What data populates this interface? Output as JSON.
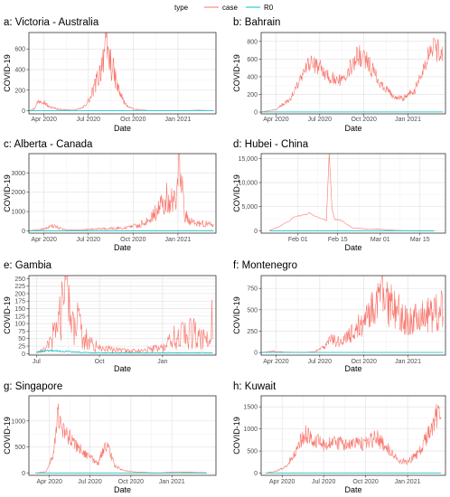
{
  "legend": {
    "title": "type",
    "entries": [
      {
        "label": "case",
        "color": "#F8766D"
      },
      {
        "label": "R0",
        "color": "#00BFC4"
      }
    ]
  },
  "chart_data": [
    {
      "type": "line",
      "title": "a: Victoria - Australia",
      "xlabel": "Date",
      "ylabel": "COVID-19",
      "xlim": [
        "2020-03-01",
        "2021-03-20"
      ],
      "ylim": [
        -30,
        760
      ],
      "yticks": [
        0,
        200,
        400,
        600
      ],
      "ytick_labels": [
        "0",
        "200",
        "400",
        "600"
      ],
      "xticks": [
        "2020-04-01",
        "2020-07-01",
        "2020-10-01",
        "2021-01-01"
      ],
      "xtick_labels": [
        "Apr 2020",
        "Jul 2020",
        "Oct 2020",
        "Jan 2021"
      ],
      "grid": true,
      "series": [
        {
          "name": "case",
          "color": "#F8766D",
          "noise": 0.35,
          "x": [
            "2020-03-01",
            "2020-03-12",
            "2020-03-20",
            "2020-03-28",
            "2020-04-10",
            "2020-05-01",
            "2020-06-01",
            "2020-06-20",
            "2020-07-05",
            "2020-07-15",
            "2020-07-25",
            "2020-08-03",
            "2020-08-10",
            "2020-08-20",
            "2020-09-01",
            "2020-09-15",
            "2020-10-01",
            "2020-11-01",
            "2021-01-01",
            "2021-02-15",
            "2021-03-15"
          ],
          "y": [
            0,
            20,
            90,
            110,
            40,
            15,
            5,
            30,
            120,
            250,
            380,
            600,
            560,
            400,
            200,
            60,
            15,
            3,
            2,
            5,
            2
          ]
        },
        {
          "name": "R0",
          "color": "#00BFC4",
          "noise": 0,
          "x": [
            "2020-03-01",
            "2021-03-15"
          ],
          "y": [
            2,
            2
          ]
        }
      ]
    },
    {
      "type": "line",
      "title": "b: Bahrain",
      "xlabel": "Date",
      "ylabel": "COVID-19",
      "xlim": [
        "2020-03-01",
        "2021-03-20"
      ],
      "ylim": [
        -20,
        900
      ],
      "yticks": [
        0,
        200,
        400,
        600,
        800
      ],
      "ytick_labels": [
        "0",
        "200",
        "400",
        "600",
        "800"
      ],
      "xticks": [
        "2020-04-01",
        "2020-07-01",
        "2020-10-01",
        "2021-01-01"
      ],
      "xtick_labels": [
        "Apr 2020",
        "Jul 2020",
        "Oct 2020",
        "Jan 2021"
      ],
      "grid": true,
      "series": [
        {
          "name": "case",
          "color": "#F8766D",
          "noise": 0.2,
          "x": [
            "2020-03-01",
            "2020-04-01",
            "2020-05-01",
            "2020-05-20",
            "2020-06-10",
            "2020-07-01",
            "2020-07-20",
            "2020-08-10",
            "2020-09-01",
            "2020-09-20",
            "2020-10-05",
            "2020-11-01",
            "2020-12-01",
            "2020-12-20",
            "2021-01-15",
            "2021-02-05",
            "2021-02-20",
            "2021-03-15"
          ],
          "y": [
            0,
            30,
            150,
            350,
            550,
            500,
            400,
            350,
            500,
            650,
            600,
            350,
            180,
            150,
            250,
            500,
            750,
            650
          ]
        },
        {
          "name": "R0",
          "color": "#00BFC4",
          "noise": 0,
          "x": [
            "2020-03-01",
            "2021-03-15"
          ],
          "y": [
            2,
            2
          ]
        }
      ]
    },
    {
      "type": "line",
      "title": "c: Alberta - Canada",
      "xlabel": "Date",
      "ylabel": "COVID-19",
      "xlim": [
        "2020-03-01",
        "2021-03-20"
      ],
      "ylim": [
        -120,
        4000
      ],
      "yticks": [
        0,
        1000,
        2000,
        3000
      ],
      "ytick_labels": [
        "0",
        "1000",
        "2000",
        "3000"
      ],
      "xticks": [
        "2020-04-01",
        "2020-07-01",
        "2020-10-01",
        "2021-01-01"
      ],
      "xtick_labels": [
        "Apr 2020",
        "Jul 2020",
        "Oct 2020",
        "Jan 2021"
      ],
      "grid": true,
      "series": [
        {
          "name": "case",
          "color": "#F8766D",
          "noise": 0.5,
          "x": [
            "2020-03-01",
            "2020-04-01",
            "2020-04-20",
            "2020-05-15",
            "2020-06-15",
            "2020-07-15",
            "2020-08-15",
            "2020-09-15",
            "2020-10-15",
            "2020-11-10",
            "2020-11-25",
            "2020-12-10",
            "2020-12-28",
            "2021-01-03",
            "2021-01-15",
            "2021-02-01",
            "2021-03-15"
          ],
          "y": [
            0,
            100,
            250,
            50,
            40,
            100,
            120,
            150,
            300,
            800,
            1200,
            1700,
            1300,
            3700,
            800,
            400,
            350
          ]
        },
        {
          "name": "R0",
          "color": "#00BFC4",
          "noise": 0,
          "x": [
            "2020-03-01",
            "2021-03-15"
          ],
          "y": [
            5,
            5
          ]
        }
      ]
    },
    {
      "type": "line",
      "title": "d: Hubei - China",
      "xlabel": "Date",
      "ylabel": "COVID-19",
      "xlim": [
        "2020-01-19",
        "2020-03-24"
      ],
      "ylim": [
        -500,
        16000
      ],
      "yticks": [
        0,
        5000,
        10000,
        15000
      ],
      "ytick_labels": [
        "0",
        "5,000",
        "10,000",
        "15,000"
      ],
      "xticks": [
        "2020-02-01",
        "2020-02-15",
        "2020-03-01",
        "2020-03-15"
      ],
      "xtick_labels": [
        "Feb 01",
        "Feb 15",
        "Mar 01",
        "Mar 15"
      ],
      "grid": true,
      "series": [
        {
          "name": "case",
          "color": "#F8766D",
          "noise": 0.1,
          "x": [
            "2020-01-22",
            "2020-01-26",
            "2020-01-30",
            "2020-02-02",
            "2020-02-05",
            "2020-02-08",
            "2020-02-11",
            "2020-02-12",
            "2020-02-13",
            "2020-02-14",
            "2020-02-17",
            "2020-02-20",
            "2020-02-25",
            "2020-03-01",
            "2020-03-08",
            "2020-03-15",
            "2020-03-20"
          ],
          "y": [
            100,
            1000,
            2500,
            3100,
            3700,
            3000,
            2000,
            14800,
            4500,
            2500,
            1900,
            600,
            400,
            300,
            30,
            5,
            0
          ]
        },
        {
          "name": "R0",
          "color": "#00BFC4",
          "noise": 0,
          "x": [
            "2020-01-22",
            "2020-03-20"
          ],
          "y": [
            3,
            3
          ]
        }
      ]
    },
    {
      "type": "line",
      "title": "e: Gambia",
      "xlabel": "Date",
      "ylabel": "COVID-19",
      "xlim": [
        "2020-06-20",
        "2021-03-20"
      ],
      "ylim": [
        -5,
        260
      ],
      "yticks": [
        0,
        25,
        50,
        75,
        100,
        125,
        150,
        175,
        200,
        225,
        250
      ],
      "ytick_labels": [
        "0",
        "25",
        "50",
        "75",
        "100",
        "125",
        "150",
        "175",
        "200",
        "225",
        "250"
      ],
      "xticks": [
        "2020-07-01",
        "2020-10-01",
        "2021-01-01"
      ],
      "xtick_labels": [
        "Jul",
        "Oct",
        "Jan"
      ],
      "grid": true,
      "series": [
        {
          "name": "case",
          "color": "#F8766D",
          "noise": 0.8,
          "x": [
            "2020-07-01",
            "2020-07-15",
            "2020-07-25",
            "2020-08-05",
            "2020-08-15",
            "2020-08-25",
            "2020-09-10",
            "2020-10-01",
            "2020-11-01",
            "2020-12-01",
            "2021-01-01",
            "2021-01-20",
            "2021-02-10",
            "2021-02-25",
            "2021-03-10",
            "2021-03-15"
          ],
          "y": [
            3,
            15,
            60,
            150,
            180,
            120,
            50,
            20,
            10,
            10,
            20,
            60,
            70,
            60,
            40,
            150
          ]
        },
        {
          "name": "R0",
          "color": "#00BFC4",
          "noise": 0.3,
          "x": [
            "2020-07-01",
            "2020-07-20",
            "2020-08-20",
            "2020-09-20",
            "2021-01-01",
            "2021-03-15"
          ],
          "y": [
            5,
            10,
            6,
            3,
            3,
            3
          ]
        }
      ]
    },
    {
      "type": "line",
      "title": "f: Montenegro",
      "xlabel": "Date",
      "ylabel": "COVID-19",
      "xlim": [
        "2020-03-01",
        "2021-03-20"
      ],
      "ylim": [
        -30,
        900
      ],
      "yticks": [
        0,
        250,
        500,
        750
      ],
      "ytick_labels": [
        "0",
        "250",
        "500",
        "750"
      ],
      "xticks": [
        "2020-04-01",
        "2020-07-01",
        "2020-10-01",
        "2021-01-01"
      ],
      "xtick_labels": [
        "Apr 2020",
        "Jul 2020",
        "Oct 2020",
        "Jan 2021"
      ],
      "grid": true,
      "series": [
        {
          "name": "case",
          "color": "#F8766D",
          "noise": 0.5,
          "x": [
            "2020-03-01",
            "2020-03-25",
            "2020-04-20",
            "2020-06-01",
            "2020-06-20",
            "2020-07-10",
            "2020-07-25",
            "2020-08-15",
            "2020-09-10",
            "2020-10-01",
            "2020-10-20",
            "2020-11-05",
            "2020-11-20",
            "2020-12-10",
            "2021-01-01",
            "2021-01-25",
            "2021-02-15",
            "2021-03-15"
          ],
          "y": [
            0,
            15,
            5,
            0,
            10,
            60,
            150,
            120,
            250,
            350,
            500,
            650,
            550,
            500,
            350,
            400,
            450,
            500
          ]
        },
        {
          "name": "R0",
          "color": "#00BFC4",
          "noise": 0,
          "x": [
            "2020-03-01",
            "2021-03-15"
          ],
          "y": [
            2,
            2
          ]
        }
      ]
    },
    {
      "type": "line",
      "title": "g: Singapore",
      "xlabel": "Date",
      "ylabel": "COVID-19",
      "xlim": [
        "2020-02-15",
        "2021-04-10"
      ],
      "ylim": [
        -40,
        1480
      ],
      "yticks": [
        0,
        500,
        1000
      ],
      "ytick_labels": [
        "0",
        "500",
        "1000"
      ],
      "xticks": [
        "2020-04-01",
        "2020-07-01",
        "2020-10-01",
        "2021-01-01"
      ],
      "xtick_labels": [
        "Apr 2020",
        "Jul 2020",
        "Oct 2020",
        "Jan 2021"
      ],
      "grid": true,
      "series": [
        {
          "name": "case",
          "color": "#F8766D",
          "noise": 0.25,
          "x": [
            "2020-03-01",
            "2020-03-25",
            "2020-04-10",
            "2020-04-20",
            "2020-05-01",
            "2020-05-20",
            "2020-06-10",
            "2020-07-01",
            "2020-07-20",
            "2020-08-05",
            "2020-08-15",
            "2020-08-25",
            "2020-09-15",
            "2020-10-15",
            "2020-11-30",
            "2021-01-15",
            "2021-03-20"
          ],
          "y": [
            2,
            30,
            400,
            1100,
            800,
            650,
            450,
            300,
            200,
            550,
            400,
            150,
            50,
            20,
            5,
            25,
            10
          ]
        },
        {
          "name": "R0",
          "color": "#00BFC4",
          "noise": 0,
          "x": [
            "2020-03-01",
            "2021-03-20"
          ],
          "y": [
            3,
            3
          ]
        }
      ]
    },
    {
      "type": "line",
      "title": "h: Kuwait",
      "xlabel": "Date",
      "ylabel": "COVID-19",
      "xlim": [
        "2020-02-15",
        "2021-03-25"
      ],
      "ylim": [
        -50,
        1750
      ],
      "yticks": [
        0,
        500,
        1000,
        1500
      ],
      "ytick_labels": [
        "0",
        "500",
        "1000",
        "1500"
      ],
      "xticks": [
        "2020-04-01",
        "2020-07-01",
        "2020-10-01",
        "2021-01-01"
      ],
      "xtick_labels": [
        "Apr 2020",
        "Jul 2020",
        "Oct 2020",
        "Jan 2021"
      ],
      "grid": true,
      "series": [
        {
          "name": "case",
          "color": "#F8766D",
          "noise": 0.25,
          "x": [
            "2020-02-25",
            "2020-03-20",
            "2020-04-10",
            "2020-05-01",
            "2020-05-20",
            "2020-06-10",
            "2020-07-01",
            "2020-07-25",
            "2020-08-20",
            "2020-09-15",
            "2020-10-05",
            "2020-10-25",
            "2020-11-15",
            "2020-12-10",
            "2021-01-01",
            "2021-01-25",
            "2021-02-15",
            "2021-03-05",
            "2021-03-15"
          ],
          "y": [
            0,
            50,
            150,
            500,
            900,
            750,
            650,
            700,
            650,
            650,
            700,
            800,
            600,
            300,
            250,
            450,
            900,
            1300,
            1500
          ]
        },
        {
          "name": "R0",
          "color": "#00BFC4",
          "noise": 0,
          "x": [
            "2020-02-25",
            "2021-03-15"
          ],
          "y": [
            3,
            3
          ]
        }
      ]
    }
  ]
}
